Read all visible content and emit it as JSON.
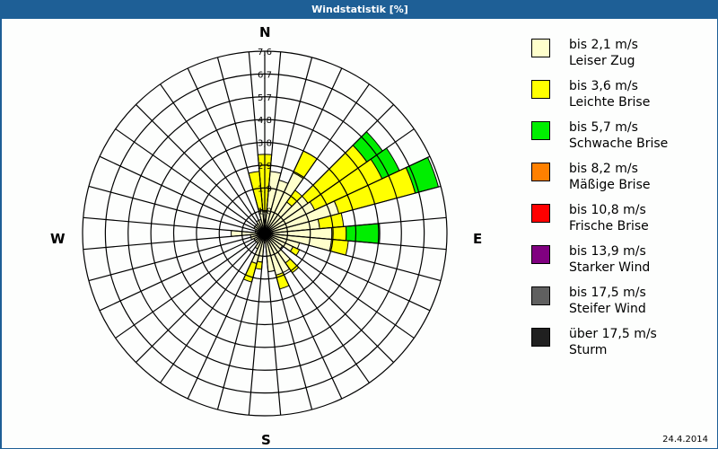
{
  "window": {
    "title": "Windstatistik [%]"
  },
  "compass": {
    "north": "N",
    "east": "E",
    "south": "S",
    "west": "W"
  },
  "legend": [
    {
      "range": "bis 2,1 m/s",
      "name": "Leiser Zug",
      "color": "#ffffcc"
    },
    {
      "range": "bis 3,6 m/s",
      "name": "Leichte Brise",
      "color": "#ffff00"
    },
    {
      "range": "bis 5,7 m/s",
      "name": "Schwache Brise",
      "color": "#00ee00"
    },
    {
      "range": "bis 8,2 m/s",
      "name": "Mäßige Brise",
      "color": "#ff8000"
    },
    {
      "range": "bis 10,8 m/s",
      "name": "Frische Brise",
      "color": "#ff0000"
    },
    {
      "range": "bis 13,9 m/s",
      "name": "Starker Wind",
      "color": "#800080"
    },
    {
      "range": "bis 17,5 m/s",
      "name": "Steifer Wind",
      "color": "#606060"
    },
    {
      "range": "über 17,5 m/s",
      "name": "Sturm",
      "color": "#202020"
    }
  ],
  "footer": {
    "date": "24.4.2014"
  },
  "chart_data": {
    "type": "polar-stacked-bar",
    "title": "Windstatistik [%]",
    "unit": "%",
    "radial_ticks": [
      "1,0",
      "1,9",
      "2,9",
      "3,8",
      "4,8",
      "5,7",
      "6,7",
      "7,6"
    ],
    "radial_max": 7.6,
    "sector_width_deg": 10,
    "directions_deg": [
      0,
      10,
      20,
      30,
      40,
      50,
      60,
      70,
      80,
      90,
      100,
      110,
      120,
      130,
      140,
      150,
      160,
      170,
      180,
      190,
      200,
      210,
      220,
      230,
      240,
      250,
      260,
      270,
      280,
      290,
      300,
      310,
      320,
      330,
      340,
      350
    ],
    "series": [
      {
        "name": "bis 2,1 m/s",
        "color": "#ffffcc",
        "values": [
          0.9,
          2.6,
          2.3,
          2.8,
          1.6,
          2.2,
          2.3,
          3.2,
          2.3,
          2.8,
          2.8,
          1.5,
          1.3,
          0.9,
          1.5,
          1.8,
          1.8,
          1.6,
          0.4,
          1.2,
          1.3,
          0.7,
          0.5,
          0.5,
          0.5,
          0.6,
          0.6,
          1.4,
          0.4,
          0.4,
          0.5,
          0.5,
          0.5,
          0.6,
          0.6,
          1.0
        ]
      },
      {
        "name": "bis 3,6 m/s",
        "color": "#ffff00",
        "values": [
          2.4,
          0,
          0,
          1.0,
          0.6,
          3.0,
          3.1,
          3.3,
          1.0,
          0.6,
          0.7,
          0,
          0.3,
          0,
          0.5,
          0,
          0.6,
          0,
          0,
          0.3,
          0.8,
          0,
          0,
          0,
          0,
          0,
          0,
          0,
          0,
          0,
          0,
          0,
          0,
          0,
          0,
          1.6
        ]
      },
      {
        "name": "bis 5,7 m/s",
        "color": "#00ee00",
        "values": [
          0,
          0,
          0,
          0,
          0,
          0.8,
          0.8,
          1.0,
          0,
          1.4,
          0,
          0,
          0,
          0,
          0,
          0,
          0,
          0,
          0,
          0,
          0,
          0,
          0,
          0,
          0,
          0,
          0,
          0,
          0,
          0,
          0,
          0,
          0,
          0,
          0,
          0
        ]
      },
      {
        "name": "bis 8,2 m/s",
        "color": "#ff8000",
        "values": [
          0,
          0,
          0,
          0,
          0,
          0,
          0,
          0,
          0,
          0,
          0,
          0,
          0,
          0,
          0,
          0,
          0,
          0,
          0,
          0,
          0,
          0,
          0,
          0,
          0,
          0,
          0,
          0,
          0,
          0,
          0,
          0,
          0,
          0,
          0,
          0
        ]
      },
      {
        "name": "bis 10,8 m/s",
        "color": "#ff0000",
        "values": [
          0,
          0,
          0,
          0,
          0,
          0,
          0,
          0,
          0,
          0,
          0,
          0,
          0,
          0,
          0,
          0,
          0,
          0,
          0,
          0,
          0,
          0,
          0,
          0,
          0,
          0,
          0,
          0,
          0,
          0,
          0,
          0,
          0,
          0,
          0,
          0
        ]
      },
      {
        "name": "bis 13,9 m/s",
        "color": "#800080",
        "values": [
          0,
          0,
          0,
          0,
          0,
          0,
          0,
          0,
          0,
          0,
          0,
          0,
          0,
          0,
          0,
          0,
          0,
          0,
          0,
          0,
          0,
          0,
          0,
          0,
          0,
          0,
          0,
          0,
          0,
          0,
          0,
          0,
          0,
          0,
          0,
          0
        ]
      },
      {
        "name": "bis 17,5 m/s",
        "color": "#606060",
        "values": [
          0,
          0,
          0,
          0,
          0,
          0,
          0,
          0,
          0,
          0,
          0,
          0,
          0,
          0,
          0,
          0,
          0,
          0,
          0,
          0,
          0,
          0,
          0,
          0,
          0,
          0,
          0,
          0,
          0,
          0,
          0,
          0,
          0,
          0,
          0,
          0
        ]
      },
      {
        "name": "über 17,5 m/s",
        "color": "#202020",
        "values": [
          0,
          0,
          0,
          0,
          0,
          0,
          0,
          0,
          0,
          0,
          0,
          0,
          0,
          0,
          0,
          0,
          0,
          0,
          0,
          0,
          0,
          0,
          0,
          0,
          0,
          0,
          0,
          0,
          0,
          0,
          0,
          0,
          0,
          0,
          0,
          0
        ]
      }
    ],
    "legend_position": "right",
    "grid": true
  }
}
